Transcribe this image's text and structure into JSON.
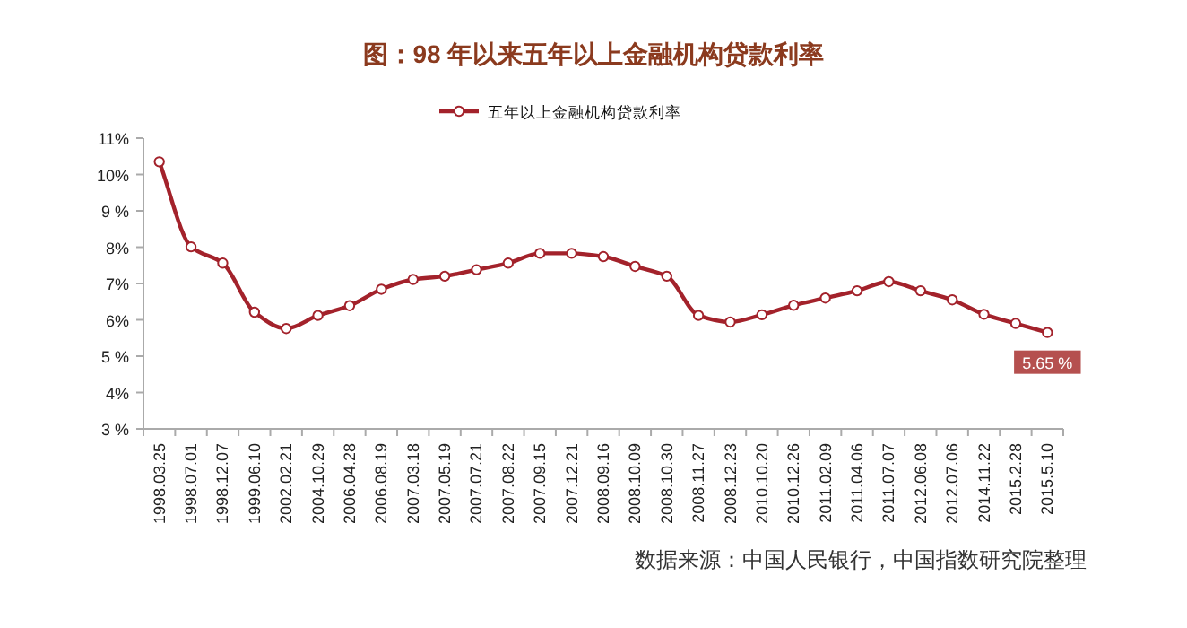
{
  "chart_data": {
    "type": "line",
    "title": "图：98 年以来五年以上金融机构贷款利率",
    "categories": [
      "1998.03.25",
      "1998.07.01",
      "1998.12.07",
      "1999.06.10",
      "2002.02.21",
      "2004.10.29",
      "2006.04.28",
      "2006.08.19",
      "2007.03.18",
      "2007.05.19",
      "2007.07.21",
      "2007.08.22",
      "2007.09.15",
      "2007.12.21",
      "2008.09.16",
      "2008.10.09",
      "2008.10.30",
      "2008.11.27",
      "2008.12.23",
      "2010.10.20",
      "2010.12.26",
      "2011.02.09",
      "2011.04.06",
      "2011.07.07",
      "2012.06.08",
      "2012.07.06",
      "2014.11.22",
      "2015.2.28",
      "2015.5.10"
    ],
    "series": [
      {
        "name": "五年以上金融机构贷款利率",
        "color": "#a3222b",
        "values": [
          10.35,
          8.01,
          7.56,
          6.21,
          5.76,
          6.12,
          6.39,
          6.84,
          7.11,
          7.2,
          7.38,
          7.56,
          7.83,
          7.83,
          7.74,
          7.47,
          7.2,
          6.12,
          5.94,
          6.14,
          6.4,
          6.6,
          6.8,
          7.05,
          6.8,
          6.55,
          6.15,
          5.9,
          5.65
        ],
        "value_labels": [
          null,
          null,
          null,
          null,
          null,
          null,
          null,
          null,
          null,
          null,
          null,
          null,
          null,
          null,
          null,
          null,
          null,
          null,
          null,
          null,
          null,
          null,
          null,
          null,
          null,
          null,
          null,
          null,
          "5.65 %"
        ]
      }
    ],
    "ylim": [
      3,
      11
    ],
    "yticks": [
      {
        "value": 3,
        "label": "3 %"
      },
      {
        "value": 4,
        "label": "4%"
      },
      {
        "value": 5,
        "label": "5 %"
      },
      {
        "value": 6,
        "label": "6%"
      },
      {
        "value": 7,
        "label": "7%"
      },
      {
        "value": 8,
        "label": "8%"
      },
      {
        "value": 9,
        "label": "9 %"
      },
      {
        "value": 10,
        "label": "10%"
      },
      {
        "value": 11,
        "label": "11%"
      }
    ],
    "grid": false,
    "legend": "top",
    "marker": "circle",
    "line_style": "solid",
    "annotations": [
      "数据来源：中国人民银行，中国指数研究院整理"
    ]
  }
}
